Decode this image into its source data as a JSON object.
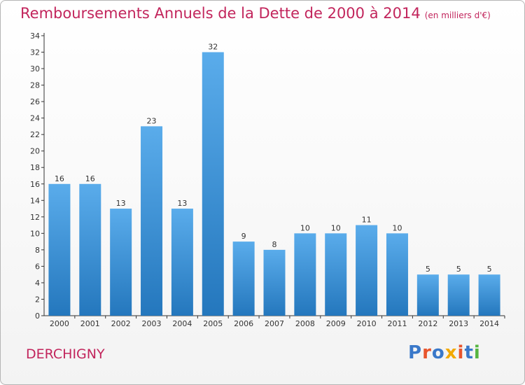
{
  "header": {
    "title": "Remboursements Annuels de la Dette de 2000 à 2014",
    "unit": "(en milliers d'€)"
  },
  "footer": {
    "commune": "DERCHIGNY",
    "logo_text": "Proxiti"
  },
  "colors": {
    "title": "#c2255c",
    "bar_light": "#5aaceb",
    "bar_dark": "#2477bd",
    "logo": [
      "#3a78c9",
      "#e8552d",
      "#3a78c9",
      "#f2a900",
      "#e8552d",
      "#3a78c9",
      "#56b540"
    ]
  },
  "chart_data": {
    "type": "bar",
    "categories": [
      "2000",
      "2001",
      "2002",
      "2003",
      "2004",
      "2005",
      "2006",
      "2007",
      "2008",
      "2009",
      "2010",
      "2011",
      "2012",
      "2013",
      "2014"
    ],
    "values": [
      16,
      16,
      13,
      23,
      13,
      32,
      9,
      8,
      10,
      10,
      11,
      10,
      5,
      5,
      5
    ],
    "title": "Remboursements Annuels de la Dette de 2000 à 2014",
    "ylim": [
      0,
      34
    ],
    "yticks": [
      0,
      2,
      4,
      6,
      8,
      10,
      12,
      14,
      16,
      18,
      20,
      22,
      24,
      26,
      28,
      30,
      32,
      34
    ],
    "grid": false,
    "data_labels": true
  }
}
